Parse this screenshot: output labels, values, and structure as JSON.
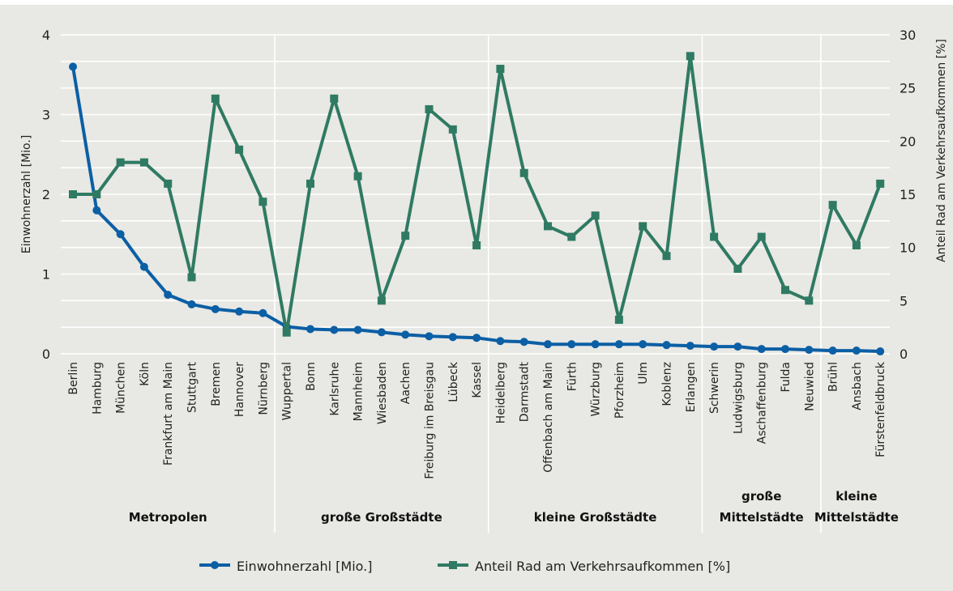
{
  "chart_data": {
    "type": "line",
    "title": "",
    "ylabel": "Einwohnerzahl [Mio.]",
    "y2label": "Anteil Rad am Verkehrsaufkommen [%]",
    "ylim": [
      0,
      4
    ],
    "y2lim": [
      0,
      30
    ],
    "yticks": [
      "0",
      "1",
      "2",
      "3",
      "4"
    ],
    "y2ticks": [
      "0",
      "5",
      "10",
      "15",
      "20",
      "25",
      "30"
    ],
    "grid": true,
    "legend_position": "bottom",
    "categories": [
      "Berlin",
      "Hamburg",
      "München",
      "Köln",
      "Frankfurt am Main",
      "Stuttgart",
      "Bremen",
      "Hannover",
      "Nürnberg",
      "Wuppertal",
      "Bonn",
      "Karlsruhe",
      "Mannheim",
      "Wiesbaden",
      "Aachen",
      "Freiburg im Breisgau",
      "Lübeck",
      "Kassel",
      "Heidelberg",
      "Darmstadt",
      "Offenbach am Main",
      "Fürth",
      "Würzburg",
      "Pforzheim",
      "Ulm",
      "Koblenz",
      "Erlangen",
      "Schwerin",
      "Ludwigsburg",
      "Aschaffenburg",
      "Fulda",
      "Neuwied",
      "Brühl",
      "Ansbach",
      "Fürstenfeldbruck"
    ],
    "groups": [
      {
        "label_lines": [
          "Metropolen"
        ],
        "start": 0,
        "end": 8
      },
      {
        "label_lines": [
          "große Großstädte"
        ],
        "start": 9,
        "end": 17
      },
      {
        "label_lines": [
          "kleine Großstädte"
        ],
        "start": 18,
        "end": 26
      },
      {
        "label_lines": [
          "große",
          "Mittelstädte"
        ],
        "start": 27,
        "end": 31
      },
      {
        "label_lines": [
          "kleine",
          "Mittelstädte"
        ],
        "start": 32,
        "end": 34
      }
    ],
    "series": [
      {
        "name": "Einwohnerzahl [Mio.]",
        "axis": "left",
        "color": "#0b5fa5",
        "marker": "circle",
        "values": [
          3.6,
          1.8,
          1.5,
          1.09,
          0.74,
          0.62,
          0.56,
          0.53,
          0.51,
          0.34,
          0.31,
          0.3,
          0.3,
          0.27,
          0.24,
          0.22,
          0.21,
          0.2,
          0.16,
          0.15,
          0.12,
          0.12,
          0.12,
          0.12,
          0.12,
          0.11,
          0.1,
          0.09,
          0.09,
          0.06,
          0.06,
          0.05,
          0.04,
          0.04,
          0.03
        ]
      },
      {
        "name": "Anteil Rad am Verkehrsaufkommen [%]",
        "axis": "right",
        "color": "#2f7a63",
        "marker": "square",
        "values": [
          15,
          15,
          18,
          18,
          16,
          7.2,
          24,
          19.2,
          14.3,
          2,
          16,
          24,
          16.7,
          5,
          11.1,
          23,
          21.1,
          10.2,
          26.8,
          17,
          12,
          11,
          13,
          3.2,
          12,
          9.2,
          28,
          11,
          8,
          11,
          6,
          5,
          14,
          10.2,
          16
        ]
      }
    ]
  }
}
